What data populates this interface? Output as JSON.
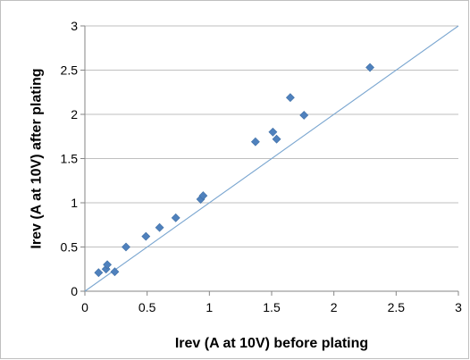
{
  "chart_data": {
    "type": "scatter",
    "title": "",
    "xlabel": "Irev (A at 10V) before plating",
    "ylabel": "Irev (A at 10V) after plating",
    "xlim": [
      0,
      3
    ],
    "ylim": [
      0,
      3
    ],
    "x_ticks": [
      "0",
      "0.5",
      "1",
      "1.5",
      "2",
      "2.5",
      "3"
    ],
    "y_ticks": [
      "0",
      "0.5",
      "1",
      "1.5",
      "2",
      "2.5",
      "3"
    ],
    "grid": "horizontal",
    "legend": "none",
    "series": [
      {
        "marker": "diamond",
        "color": "#4f81bd",
        "points": [
          {
            "x": 0.11,
            "y": 0.21
          },
          {
            "x": 0.17,
            "y": 0.25
          },
          {
            "x": 0.18,
            "y": 0.3
          },
          {
            "x": 0.24,
            "y": 0.22
          },
          {
            "x": 0.33,
            "y": 0.5
          },
          {
            "x": 0.49,
            "y": 0.62
          },
          {
            "x": 0.6,
            "y": 0.72
          },
          {
            "x": 0.73,
            "y": 0.83
          },
          {
            "x": 0.93,
            "y": 1.04
          },
          {
            "x": 0.95,
            "y": 1.08
          },
          {
            "x": 1.37,
            "y": 1.69
          },
          {
            "x": 1.51,
            "y": 1.8
          },
          {
            "x": 1.54,
            "y": 1.72
          },
          {
            "x": 1.65,
            "y": 2.19
          },
          {
            "x": 1.76,
            "y": 1.99
          },
          {
            "x": 2.29,
            "y": 2.53
          }
        ]
      }
    ],
    "reference_line": {
      "type": "y=x",
      "color": "#7aa6d0"
    },
    "colors": {
      "grid": "#bfbfbf",
      "axis": "#868686",
      "border": "#bfbfbf"
    }
  }
}
